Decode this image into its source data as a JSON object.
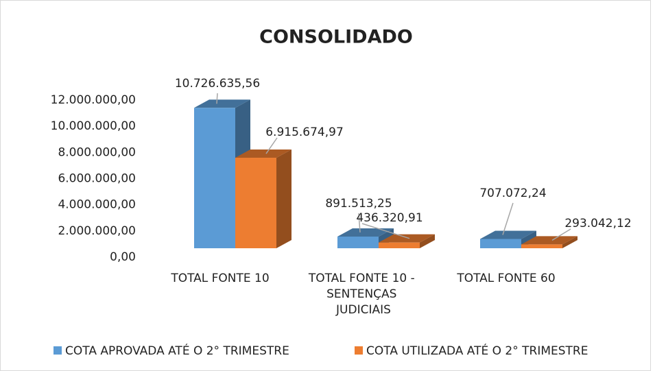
{
  "chart_data": {
    "type": "bar3d",
    "title": "CONSOLIDADO",
    "categories": [
      "TOTAL FONTE 10",
      "TOTAL FONTE 10 - SENTENÇAS JUDICIAIS",
      "TOTAL FONTE 60"
    ],
    "series": [
      {
        "name": "COTA APROVADA ATÉ O 2° TRIMESTRE",
        "color": "#5b9bd5",
        "values": [
          10726635.56,
          891513.25,
          707072.24
        ],
        "value_labels": [
          "10.726.635,56",
          "891.513,25",
          "707.072,24"
        ]
      },
      {
        "name": "COTA UTILIZADA ATÉ O 2° TRIMESTRE",
        "color": "#ed7d31",
        "values": [
          6915674.97,
          436320.91,
          293042.12
        ],
        "value_labels": [
          "6.915.674,97",
          "436.320,91",
          "293.042,12"
        ]
      }
    ],
    "ylim": [
      0,
      12000000
    ],
    "yticks": [
      {
        "value": 0,
        "label": "0,00"
      },
      {
        "value": 2000000,
        "label": "2.000.000,00"
      },
      {
        "value": 4000000,
        "label": "4.000.000,00"
      },
      {
        "value": 6000000,
        "label": "6.000.000,00"
      },
      {
        "value": 8000000,
        "label": "8.000.000,00"
      },
      {
        "value": 10000000,
        "label": "10.000.000,00"
      },
      {
        "value": 12000000,
        "label": "12.000.000,00"
      }
    ],
    "grid": false,
    "legend": "bottom"
  }
}
